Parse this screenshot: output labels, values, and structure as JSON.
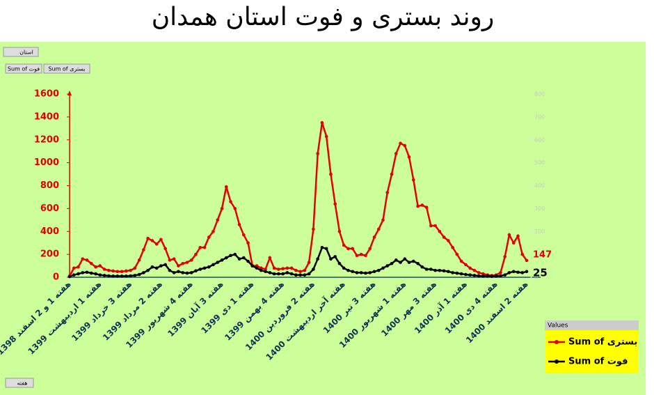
{
  "chart_data": {
    "type": "line",
    "title": "روند بستری و فوت استان همدان",
    "categories": [
      "هفته 1 و 2 اسفند 1398",
      null,
      null,
      null,
      null,
      null,
      null,
      "هفته 1 اردیبهشت 1399",
      null,
      null,
      null,
      null,
      null,
      null,
      "هفته 3 خرداد 1399",
      null,
      null,
      null,
      null,
      null,
      null,
      "هفته 2 مرداد 1399",
      null,
      null,
      null,
      null,
      null,
      null,
      "هفته 4 شهریور 1399",
      null,
      null,
      null,
      null,
      null,
      null,
      "هفته 3 آبان 1399",
      null,
      null,
      null,
      null,
      null,
      null,
      "هفته 1 دی 1399",
      null,
      null,
      null,
      null,
      null,
      null,
      "هفته 4 بهمن 1399",
      null,
      null,
      null,
      null,
      null,
      null,
      "هفته 2 فروردین 1400",
      null,
      null,
      null,
      null,
      null,
      null,
      "هفته آخر اردیبهشت 1400",
      null,
      null,
      null,
      null,
      null,
      null,
      "هفته 3 تیر 1400",
      null,
      null,
      null,
      null,
      null,
      null,
      "هفته 1 شهریور 1400",
      null,
      null,
      null,
      null,
      null,
      null,
      "هفته 3 مهر 1400",
      null,
      null,
      null,
      null,
      null,
      null,
      "هفته 1 آذر 1400",
      null,
      null,
      null,
      null,
      null,
      null,
      "هفته 4 دی 1400",
      null,
      null,
      null,
      null,
      null,
      null,
      "هفته 2 اسفند 1400"
    ],
    "series": [
      {
        "name": "Sum of بستری",
        "color": "#e00000",
        "axis": "y",
        "values": [
          10,
          80,
          90,
          160,
          150,
          120,
          90,
          100,
          70,
          60,
          55,
          50,
          50,
          55,
          60,
          80,
          150,
          240,
          340,
          320,
          290,
          330,
          250,
          150,
          160,
          100,
          120,
          130,
          150,
          200,
          260,
          260,
          350,
          400,
          500,
          600,
          790,
          660,
          600,
          460,
          370,
          300,
          100,
          100,
          80,
          70,
          170,
          80,
          70,
          75,
          80,
          80,
          60,
          50,
          60,
          130,
          420,
          1080,
          1350,
          1230,
          900,
          640,
          400,
          280,
          250,
          250,
          190,
          200,
          190,
          250,
          350,
          420,
          500,
          740,
          900,
          1080,
          1170,
          1150,
          1050,
          850,
          620,
          630,
          610,
          450,
          450,
          400,
          350,
          320,
          260,
          200,
          140,
          110,
          80,
          60,
          40,
          30,
          20,
          15,
          20,
          40,
          180,
          370,
          300,
          360,
          200,
          147
        ]
      },
      {
        "name": "Sum of فوت",
        "color": "#000000",
        "axis": "y2",
        "values": [
          3,
          10,
          15,
          20,
          22,
          18,
          15,
          10,
          8,
          6,
          5,
          5,
          5,
          5,
          6,
          8,
          12,
          20,
          30,
          45,
          40,
          50,
          55,
          30,
          20,
          25,
          20,
          18,
          20,
          28,
          35,
          40,
          45,
          55,
          65,
          75,
          85,
          95,
          100,
          80,
          85,
          70,
          50,
          40,
          30,
          25,
          20,
          15,
          15,
          15,
          20,
          15,
          10,
          10,
          10,
          15,
          35,
          80,
          130,
          125,
          80,
          90,
          60,
          40,
          30,
          25,
          20,
          20,
          18,
          20,
          25,
          30,
          40,
          50,
          60,
          75,
          65,
          80,
          65,
          70,
          60,
          45,
          35,
          35,
          30,
          30,
          28,
          25,
          20,
          18,
          15,
          12,
          10,
          8,
          6,
          5,
          5,
          4,
          5,
          6,
          10,
          20,
          25,
          22,
          20,
          25
        ]
      }
    ],
    "ylim": [
      0,
      1600
    ],
    "yticks": [
      0,
      200,
      400,
      600,
      800,
      1000,
      1200,
      1400,
      1600
    ],
    "y2lim": [
      0,
      800
    ],
    "y2ticks": [
      0,
      100,
      200,
      300,
      400,
      500,
      600,
      700,
      800
    ],
    "legend_title": "Values",
    "legend": "bottom-right",
    "grid": false
  },
  "pivot": {
    "filter_field": "استان",
    "value_fields": [
      "Sum of فوت",
      "Sum of بستری"
    ],
    "axis_field": "هفته"
  }
}
